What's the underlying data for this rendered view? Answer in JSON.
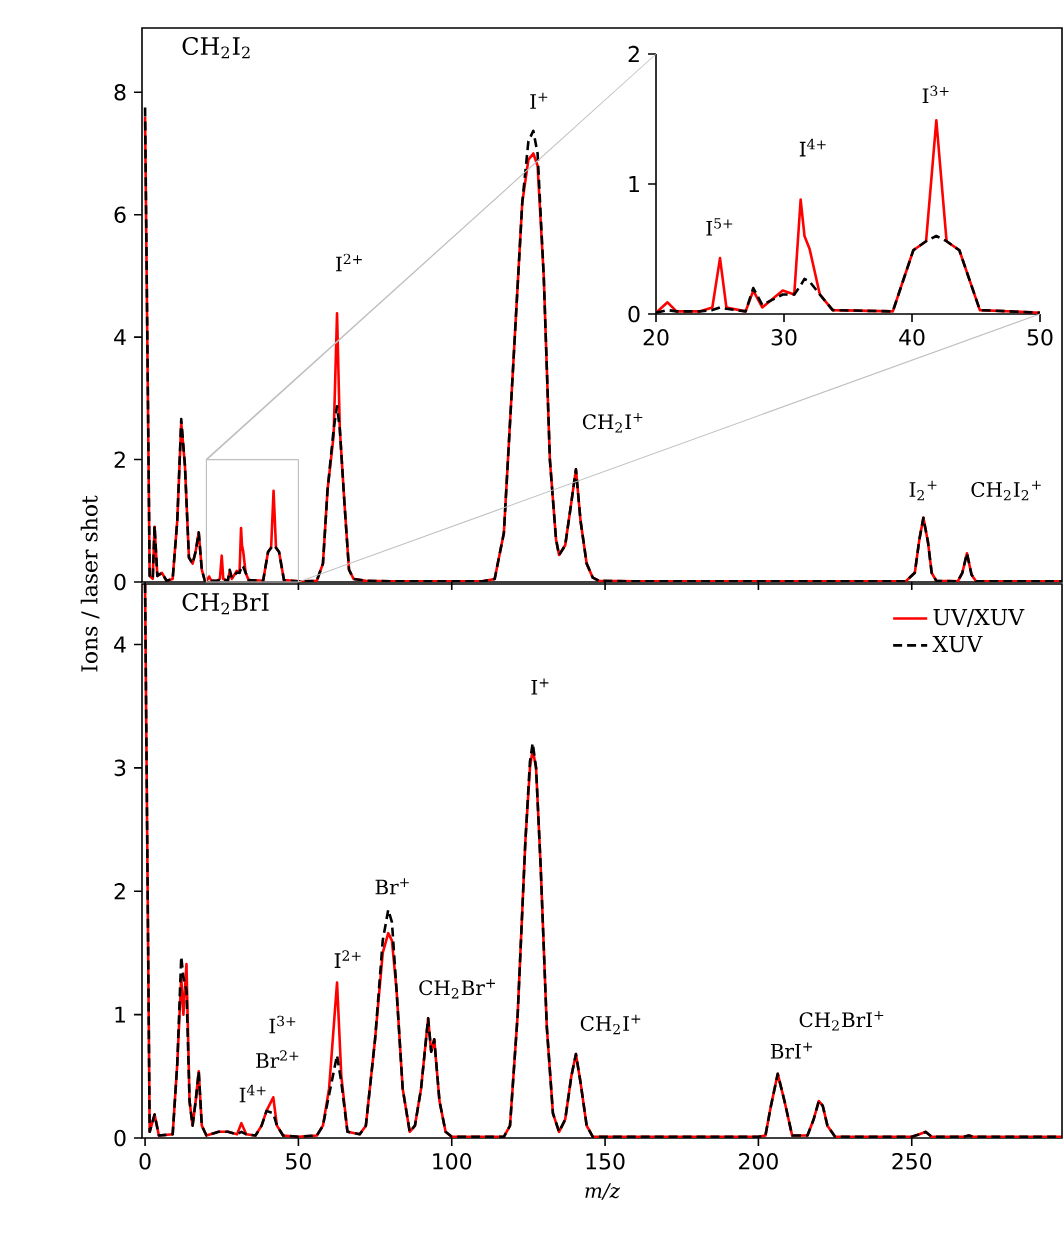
{
  "chart_data": [
    {
      "type": "line",
      "title": "CH$_{2}$I$_{2}$",
      "xlim": [
        -1,
        299
      ],
      "ylim": [
        0,
        9.05
      ],
      "xticks": [
        0,
        50,
        100,
        150,
        200,
        250
      ],
      "yticks": [
        0,
        2,
        4,
        6,
        8
      ],
      "tick_labels": "y",
      "x": [
        0,
        1.5,
        2.5,
        3.1,
        4,
        5.5,
        7,
        9,
        10.5,
        11.8,
        13,
        14.3,
        15.5,
        16.5,
        17.5,
        18.5,
        19.5,
        20,
        20.9,
        21.6,
        23.4,
        24.4,
        25,
        25.5,
        27,
        27.6,
        28.3,
        29.9,
        30.8,
        31.3,
        31.6,
        32,
        32.8,
        33.8,
        38.5,
        40.1,
        41.1,
        41.9,
        42.7,
        43.7,
        45.3,
        50,
        52,
        56,
        58,
        59.5,
        61.5,
        62.6,
        63.5,
        65,
        66.5,
        68,
        72,
        80,
        100,
        110,
        114,
        117,
        120,
        123,
        125,
        126.6,
        128,
        130,
        132,
        134,
        135,
        137,
        139,
        140.5,
        142,
        144,
        146,
        148,
        160,
        200,
        248,
        251,
        252.5,
        253.8,
        255.3,
        256.5,
        258,
        265,
        266.5,
        268,
        269.5,
        271,
        299
      ],
      "series": [
        {
          "color": "#ff0000",
          "line_style": "solid",
          "values": [
            7.6,
            0.1,
            0.05,
            0.9,
            0.1,
            0.15,
            0.02,
            0.05,
            1.0,
            2.6,
            1.9,
            0.4,
            0.3,
            0.5,
            0.81,
            0.2,
            0.02,
            0.01,
            0.09,
            0.02,
            0.02,
            0.05,
            0.43,
            0.05,
            0.02,
            0.18,
            0.05,
            0.18,
            0.15,
            0.88,
            0.6,
            0.5,
            0.15,
            0.03,
            0.02,
            0.49,
            0.56,
            1.49,
            0.56,
            0.49,
            0.03,
            0.01,
            0.01,
            0.02,
            0.3,
            1.5,
            2.4,
            4.39,
            2.5,
            1.3,
            0.2,
            0.05,
            0.02,
            0.01,
            0.01,
            0.01,
            0.05,
            0.8,
            3.5,
            6.2,
            6.9,
            7.0,
            6.8,
            5.0,
            2.0,
            0.7,
            0.44,
            0.6,
            1.3,
            1.84,
            1.0,
            0.3,
            0.07,
            0.02,
            0.01,
            0.01,
            0.01,
            0.15,
            0.7,
            1.05,
            0.65,
            0.15,
            0.02,
            0.01,
            0.15,
            0.47,
            0.12,
            0.01,
            0.01
          ]
        },
        {
          "color": "#000000",
          "line_style": "dashed",
          "values": [
            7.75,
            0.1,
            0.05,
            0.92,
            0.1,
            0.15,
            0.02,
            0.05,
            1.0,
            2.66,
            1.9,
            0.4,
            0.3,
            0.5,
            0.81,
            0.2,
            0.02,
            0.01,
            0.03,
            0.02,
            0.02,
            0.03,
            0.05,
            0.04,
            0.02,
            0.2,
            0.07,
            0.15,
            0.15,
            0.22,
            0.27,
            0.25,
            0.15,
            0.03,
            0.02,
            0.49,
            0.56,
            0.6,
            0.56,
            0.49,
            0.03,
            0.01,
            0.01,
            0.02,
            0.3,
            1.5,
            2.5,
            2.87,
            2.5,
            1.3,
            0.2,
            0.05,
            0.02,
            0.01,
            0.01,
            0.01,
            0.05,
            0.8,
            3.5,
            6.2,
            7.2,
            7.37,
            7.0,
            5.0,
            2.0,
            0.7,
            0.44,
            0.6,
            1.3,
            1.84,
            1.0,
            0.3,
            0.07,
            0.02,
            0.01,
            0.01,
            0.01,
            0.15,
            0.7,
            1.05,
            0.65,
            0.15,
            0.02,
            0.01,
            0.15,
            0.47,
            0.12,
            0.01,
            0.01
          ]
        }
      ],
      "annotations": [
        "I$^{2+}$",
        "I$^{+}$",
        "CH$_{2}$I$^{+}$",
        "I$_{2}$$^{+}$",
        "CH$_{2}$I$_{2}$$^{+}$"
      ]
    },
    {
      "type": "line",
      "xlim": [
        20,
        50
      ],
      "ylim": [
        0,
        2
      ],
      "xticks": [
        20,
        30,
        40,
        50
      ],
      "yticks": [
        0,
        1,
        2
      ],
      "x": [
        20,
        20.9,
        21.6,
        23.4,
        24.4,
        25,
        25.5,
        27,
        27.6,
        28.3,
        29.9,
        30.8,
        31.3,
        31.6,
        32,
        32.8,
        33.8,
        38.5,
        40.1,
        41.1,
        41.9,
        42.7,
        43.7,
        45.3,
        50
      ],
      "series": [
        {
          "color": "#ff0000",
          "line_style": "solid",
          "values": [
            0.01,
            0.09,
            0.02,
            0.02,
            0.05,
            0.43,
            0.05,
            0.02,
            0.18,
            0.05,
            0.18,
            0.15,
            0.88,
            0.6,
            0.5,
            0.15,
            0.03,
            0.02,
            0.49,
            0.56,
            1.49,
            0.56,
            0.49,
            0.03,
            0.01
          ]
        },
        {
          "color": "#000000",
          "line_style": "dashed",
          "values": [
            0.01,
            0.03,
            0.02,
            0.02,
            0.03,
            0.05,
            0.04,
            0.02,
            0.2,
            0.07,
            0.15,
            0.15,
            0.22,
            0.27,
            0.25,
            0.15,
            0.03,
            0.02,
            0.49,
            0.56,
            0.6,
            0.56,
            0.49,
            0.03,
            0.01
          ]
        }
      ],
      "annotations": [
        "I$^{5+}$",
        "I$^{4+}$",
        "I$^{3+}$"
      ]
    },
    {
      "type": "line",
      "title": "CH$_{2}$BrI",
      "xlabel": "m/z",
      "ylabel": "Ions / laser shot",
      "legend": "top right",
      "xlim": [
        -1,
        299
      ],
      "ylim": [
        0,
        4.49
      ],
      "xticks": [
        0,
        50,
        100,
        150,
        200,
        250
      ],
      "yticks": [
        0,
        1,
        2,
        3,
        4
      ],
      "x": [
        0,
        1.5,
        3.1,
        4.5,
        9,
        10.5,
        11.8,
        12.5,
        13.5,
        14.5,
        15.5,
        16.5,
        17.5,
        18.5,
        20,
        24,
        27,
        30,
        31.4,
        33,
        36,
        38,
        39.6,
        41.8,
        43,
        45,
        50,
        56,
        58,
        60,
        62.6,
        64,
        66,
        70,
        72,
        75,
        77.5,
        79.3,
        80.5,
        82,
        84,
        86.3,
        88,
        90,
        92.3,
        93.3,
        94.3,
        96,
        98,
        100,
        117,
        119,
        121.5,
        124,
        125.5,
        126.4,
        127.5,
        129,
        131,
        133,
        135,
        137,
        139,
        140.5,
        142,
        144,
        146,
        200,
        202.3,
        204,
        206.3,
        208.5,
        211,
        216,
        218,
        219.7,
        221,
        222.5,
        225,
        250,
        252.5,
        254.5,
        256.5,
        267,
        268.6,
        270,
        299
      ],
      "series": [
        {
          "name": "UV/XUV",
          "color": "#ff0000",
          "line_style": "solid",
          "values": [
            4.49,
            0.05,
            0.19,
            0.02,
            0.03,
            0.6,
            1.3,
            1.0,
            1.41,
            0.3,
            0.1,
            0.3,
            0.54,
            0.1,
            0.02,
            0.05,
            0.05,
            0.03,
            0.12,
            0.03,
            0.02,
            0.1,
            0.22,
            0.33,
            0.1,
            0.02,
            0.01,
            0.02,
            0.1,
            0.4,
            1.26,
            0.5,
            0.05,
            0.03,
            0.1,
            0.8,
            1.5,
            1.66,
            1.6,
            1.2,
            0.4,
            0.05,
            0.1,
            0.4,
            0.97,
            0.7,
            0.8,
            0.3,
            0.05,
            0.01,
            0.01,
            0.1,
            1.0,
            2.4,
            3.0,
            3.15,
            3.0,
            2.2,
            0.9,
            0.2,
            0.05,
            0.15,
            0.5,
            0.68,
            0.45,
            0.1,
            0.01,
            0.01,
            0.02,
            0.25,
            0.52,
            0.3,
            0.02,
            0.02,
            0.15,
            0.3,
            0.26,
            0.1,
            0.01,
            0.01,
            0.03,
            0.05,
            0.01,
            0.01,
            0.02,
            0.01,
            0.01
          ]
        },
        {
          "name": "XUV",
          "color": "#000000",
          "line_style": "dashed",
          "values": [
            4.49,
            0.05,
            0.19,
            0.02,
            0.03,
            0.6,
            1.47,
            1.3,
            1.2,
            0.3,
            0.1,
            0.3,
            0.54,
            0.1,
            0.02,
            0.05,
            0.05,
            0.03,
            0.05,
            0.03,
            0.02,
            0.1,
            0.22,
            0.2,
            0.1,
            0.02,
            0.01,
            0.02,
            0.1,
            0.35,
            0.67,
            0.45,
            0.05,
            0.03,
            0.1,
            0.8,
            1.6,
            1.85,
            1.75,
            1.2,
            0.4,
            0.05,
            0.1,
            0.4,
            0.97,
            0.7,
            0.8,
            0.3,
            0.05,
            0.01,
            0.01,
            0.1,
            1.0,
            2.4,
            3.05,
            3.2,
            3.0,
            2.2,
            0.9,
            0.2,
            0.05,
            0.15,
            0.5,
            0.68,
            0.45,
            0.1,
            0.01,
            0.01,
            0.02,
            0.25,
            0.52,
            0.3,
            0.02,
            0.02,
            0.15,
            0.3,
            0.26,
            0.1,
            0.01,
            0.01,
            0.03,
            0.05,
            0.01,
            0.01,
            0.02,
            0.01,
            0.01
          ]
        }
      ],
      "annotations": [
        "I$^{4+}$",
        "Br$^{2+}$",
        "I$^{3+}$",
        "I$^{2+}$",
        "Br$^{+}$",
        "CH$_{2}$Br$^{+}$",
        "I$^{+}$",
        "CH$_{2}$I$^{+}$",
        "CH$_{2}$BrI$^{+}$",
        "BrI$^{+}$"
      ]
    }
  ]
}
